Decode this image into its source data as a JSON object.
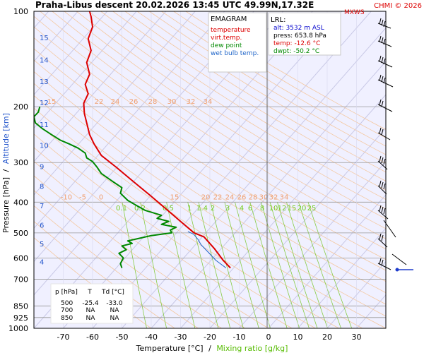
{
  "header": {
    "title": "Praha-Libus   descent   20.02.2026 13:45 UTC  49.99N,17.32E",
    "credit": "CHMI © 2026",
    "mxws": "MXWS"
  },
  "legend": {
    "title": "EMAGRAM",
    "items": [
      {
        "label": "temperature",
        "color": "#dd0000"
      },
      {
        "label": "virt.temp.",
        "color": "#dd0000"
      },
      {
        "label": "dew point",
        "color": "#008800"
      },
      {
        "label": "wet bulb temp.",
        "color": "#1e64c8"
      }
    ]
  },
  "lrl": {
    "title": "LRL:",
    "lines": [
      {
        "text": "alt: 3532 m ASL",
        "color": "#0000cc"
      },
      {
        "text": "press: 653.8 hPa",
        "color": "#000000"
      },
      {
        "text": "temp: -12.6 °C",
        "color": "#dd0000"
      },
      {
        "text": "dwpt: -50.2 °C",
        "color": "#008800"
      }
    ]
  },
  "table": {
    "headers": [
      "p [hPa]",
      "T",
      "Td [°C]"
    ],
    "rows": [
      [
        "500",
        "-25.4",
        "-33.0"
      ],
      [
        "700",
        "NA",
        "NA"
      ],
      [
        "850",
        "NA",
        "NA"
      ]
    ]
  },
  "chart_data": {
    "type": "line",
    "title": "Praha-Libus   descent   20.02.2026 13:45 UTC  49.99N,17.32E",
    "xlabel": "Temperature [°C]",
    "xlabel_sep": "/",
    "xlabel2": "Mixing ratio [g/kg]",
    "ylabel": "Pressure [hPa]",
    "ylabel_sep": "/",
    "ylabel2": "Altitude [km]",
    "xlim": [
      -80,
      40
    ],
    "ylim": [
      1000,
      100
    ],
    "y_scale": "log",
    "x_ticks": [
      -70,
      -60,
      -50,
      -40,
      -30,
      -20,
      -10,
      0,
      10,
      20,
      30
    ],
    "y_ticks": [
      100,
      200,
      300,
      400,
      500,
      600,
      700,
      850,
      925,
      1000
    ],
    "altitude_ticks": [
      {
        "km": 4,
        "p": 616
      },
      {
        "km": 5,
        "p": 540
      },
      {
        "km": 6,
        "p": 472
      },
      {
        "km": 7,
        "p": 410
      },
      {
        "km": 8,
        "p": 356
      },
      {
        "km": 9,
        "p": 308
      },
      {
        "km": 10,
        "p": 264
      },
      {
        "km": 11,
        "p": 227
      },
      {
        "km": 12,
        "p": 194
      },
      {
        "km": 13,
        "p": 166
      },
      {
        "km": 14,
        "p": 142
      },
      {
        "km": 15,
        "p": 121
      }
    ],
    "isotherm_labels": [
      {
        "row_p": 400,
        "values": [
          "-10",
          "-5",
          "0",
          "15",
          "20",
          "22",
          "24",
          "26",
          "28",
          "30",
          "32",
          "34"
        ]
      },
      {
        "row_p": 200,
        "values": [
          "15",
          "22",
          "24",
          "26",
          "28",
          "30",
          "32",
          "34"
        ]
      }
    ],
    "mixing_ratio_labels": [
      "0.1",
      "0.2",
      "0.5",
      "1",
      "1.4",
      "2",
      "3",
      "4",
      "6",
      "8",
      "10",
      "12",
      "15",
      "20",
      "25"
    ],
    "mixing_ratio_values": [
      0.1,
      0.2,
      0.5,
      1,
      1.4,
      2,
      3,
      4,
      6,
      8,
      10,
      12,
      15,
      20,
      25
    ],
    "series": [
      {
        "name": "temperature",
        "color": "#dd0000",
        "points": [
          [
            -13.0,
            645
          ],
          [
            -15.5,
            610
          ],
          [
            -18.5,
            560
          ],
          [
            -22.0,
            515
          ],
          [
            -25.4,
            500
          ],
          [
            -30.0,
            460
          ],
          [
            -35.0,
            420
          ],
          [
            -40.5,
            380
          ],
          [
            -46.0,
            345
          ],
          [
            -52.0,
            310
          ],
          [
            -57.0,
            285
          ],
          [
            -59.5,
            262
          ],
          [
            -61.0,
            245
          ],
          [
            -62.0,
            225
          ],
          [
            -62.8,
            210
          ],
          [
            -63.0,
            195
          ],
          [
            -61.5,
            182
          ],
          [
            -62.5,
            170
          ],
          [
            -61.0,
            158
          ],
          [
            -62.0,
            145
          ],
          [
            -60.5,
            133
          ],
          [
            -61.5,
            122
          ],
          [
            -60.0,
            112
          ],
          [
            -60.5,
            104
          ],
          [
            -61.0,
            100
          ]
        ]
      },
      {
        "name": "dew point",
        "color": "#008800",
        "points": [
          [
            -50.0,
            645
          ],
          [
            -50.5,
            625
          ],
          [
            -49.5,
            600
          ],
          [
            -51.0,
            580
          ],
          [
            -48.5,
            565
          ],
          [
            -50.0,
            550
          ],
          [
            -46.5,
            540
          ],
          [
            -48.0,
            530
          ],
          [
            -44.0,
            520
          ],
          [
            -40.0,
            510
          ],
          [
            -36.5,
            505
          ],
          [
            -33.0,
            500
          ],
          [
            -33.5,
            490
          ],
          [
            -31.5,
            480
          ],
          [
            -36.5,
            470
          ],
          [
            -34.0,
            460
          ],
          [
            -38.0,
            450
          ],
          [
            -36.5,
            440
          ],
          [
            -42.0,
            425
          ],
          [
            -45.0,
            410
          ],
          [
            -48.0,
            395
          ],
          [
            -50.5,
            375
          ],
          [
            -50.0,
            360
          ],
          [
            -53.0,
            345
          ],
          [
            -57.0,
            325
          ],
          [
            -58.5,
            310
          ],
          [
            -60.0,
            298
          ],
          [
            -62.0,
            290
          ],
          [
            -62.5,
            280
          ],
          [
            -65.0,
            270
          ],
          [
            -68.0,
            262
          ],
          [
            -71.0,
            255
          ],
          [
            -74.0,
            245
          ],
          [
            -77.0,
            235
          ],
          [
            -79.5,
            225
          ],
          [
            -80.0,
            215
          ],
          [
            -78.5,
            208
          ],
          [
            -78.0,
            200
          ]
        ]
      },
      {
        "name": "wet bulb temp.",
        "color": "#1e64c8",
        "points": [
          [
            -14.5,
            645
          ],
          [
            -18.0,
            610
          ],
          [
            -21.0,
            570
          ],
          [
            -23.0,
            545
          ],
          [
            -24.0,
            525
          ],
          [
            -25.5,
            505
          ],
          [
            -27.5,
            495
          ]
        ]
      }
    ]
  }
}
